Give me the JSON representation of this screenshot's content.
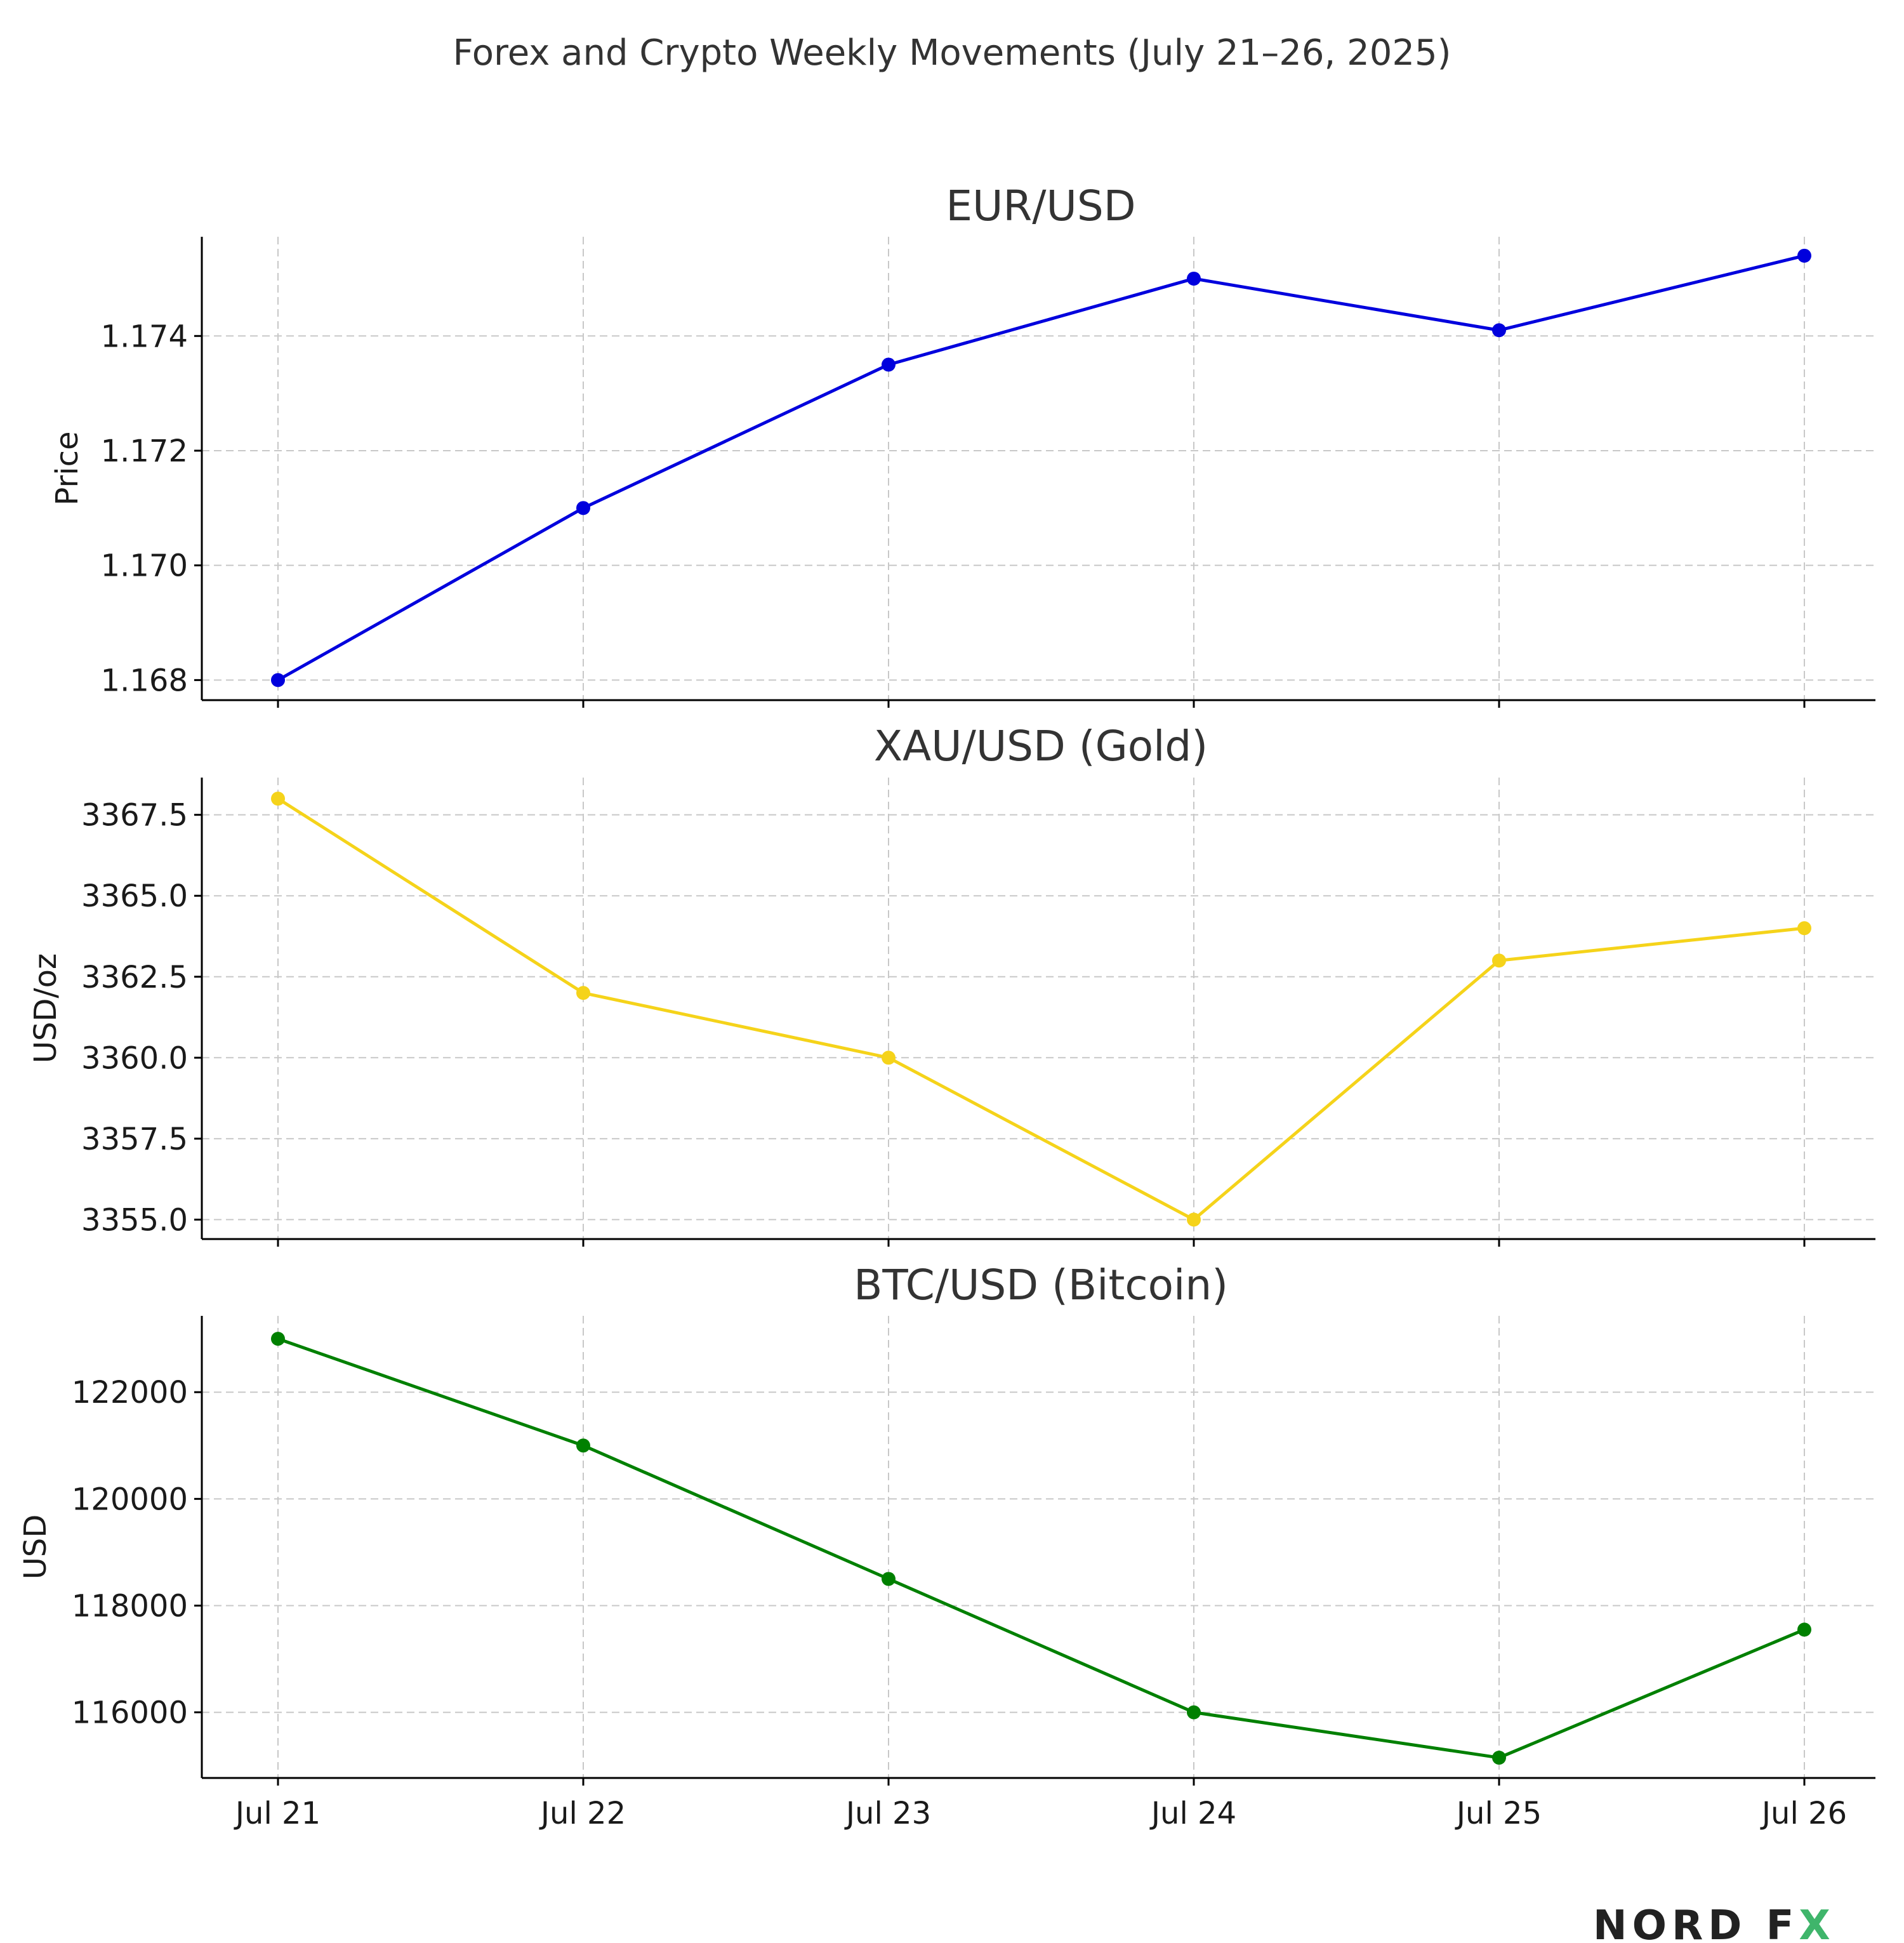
{
  "chart_data": {
    "type": "line",
    "title": "Forex and Crypto Weekly Movements (July 21–26, 2025)",
    "x": [
      "Jul 21",
      "Jul 22",
      "Jul 23",
      "Jul 24",
      "Jul 25",
      "Jul 26"
    ],
    "grid": true,
    "panels": [
      {
        "title": "EUR/USD",
        "ylabel": "Price",
        "color": "#0000dd",
        "ylim": [
          1.16765,
          1.17573
        ],
        "yticks": [
          1.168,
          1.17,
          1.172,
          1.174
        ],
        "ytick_labels": [
          "1.168",
          "1.170",
          "1.172",
          "1.174"
        ],
        "series": [
          {
            "values": [
              1.168,
              1.171,
              1.1735,
              1.175,
              1.1741,
              1.1754
            ]
          }
        ]
      },
      {
        "title": "XAU/USD (Gold)",
        "ylabel": "USD/oz",
        "color": "#f5d31a",
        "ylim": [
          3354.4,
          3368.65
        ],
        "yticks": [
          3355.0,
          3357.5,
          3360.0,
          3362.5,
          3365.0,
          3367.5
        ],
        "ytick_labels": [
          "3355.0",
          "3357.5",
          "3360.0",
          "3362.5",
          "3365.0",
          "3367.5"
        ],
        "series": [
          {
            "values": [
              3368.0,
              3362.0,
              3360.0,
              3355.0,
              3363.0,
              3364.0
            ]
          }
        ]
      },
      {
        "title": "BTC/USD (Bitcoin)",
        "ylabel": "USD",
        "color": "#008000",
        "ylim": [
          114770,
          123430
        ],
        "yticks": [
          116000,
          118000,
          120000,
          122000
        ],
        "ytick_labels": [
          "116000",
          "118000",
          "120000",
          "122000"
        ],
        "series": [
          {
            "values": [
              123000,
              121000,
              118500,
              116000,
              115150,
              117550
            ]
          }
        ]
      }
    ]
  },
  "logo": {
    "text_main": "NORD F",
    "text_accent": "X",
    "color_main": "#222222",
    "color_accent_green": "#3fb56b",
    "color_accent_red": "#e0424a"
  }
}
